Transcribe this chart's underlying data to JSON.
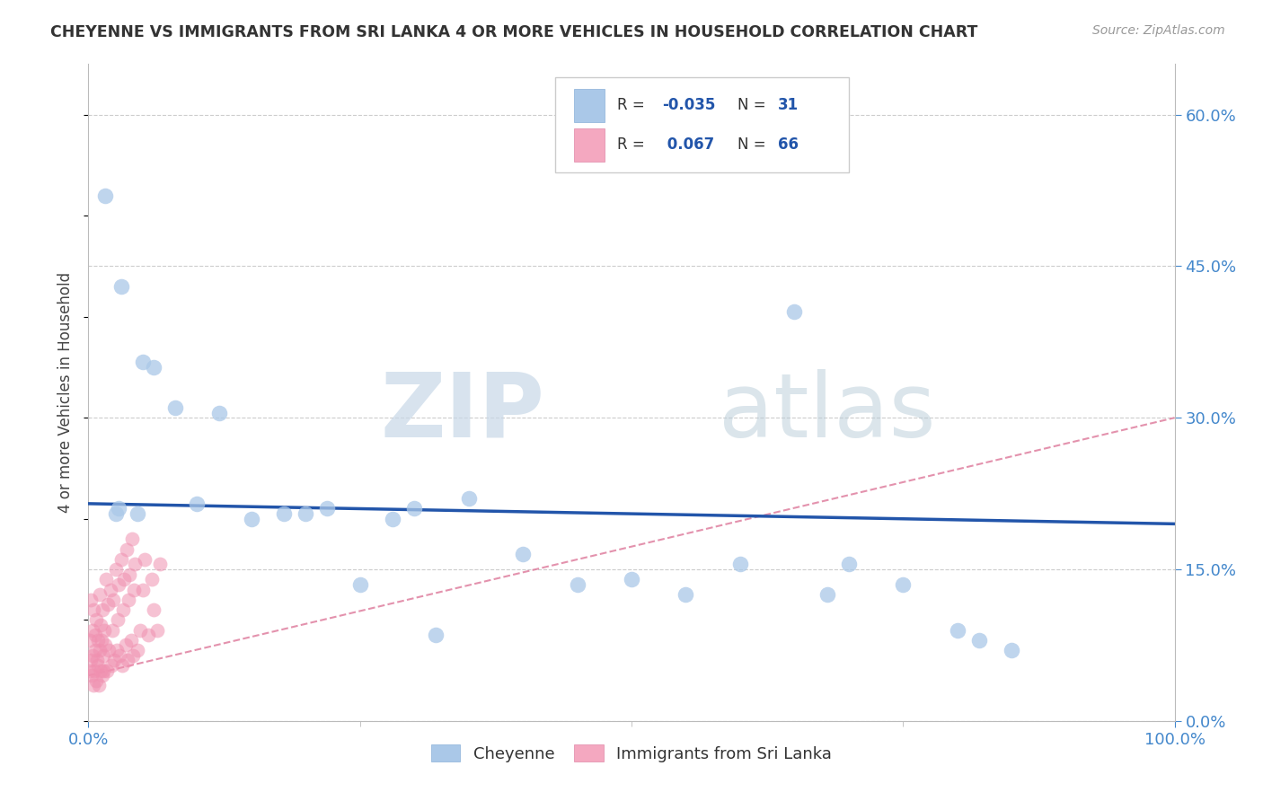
{
  "title": "CHEYENNE VS IMMIGRANTS FROM SRI LANKA 4 OR MORE VEHICLES IN HOUSEHOLD CORRELATION CHART",
  "source": "Source: ZipAtlas.com",
  "ylabel": "4 or more Vehicles in Household",
  "watermark_zip": "ZIP",
  "watermark_atlas": "atlas",
  "cheyenne_r": -0.035,
  "cheyenne_n": 31,
  "sri_lanka_r": 0.067,
  "sri_lanka_n": 66,
  "xlim": [
    0.0,
    100.0
  ],
  "ylim": [
    0.0,
    65.0
  ],
  "xticklabels": [
    "0.0%",
    "100.0%"
  ],
  "xtick_minor_positions": [
    25,
    50,
    75
  ],
  "yticklabels_right_vals": [
    0,
    15,
    30,
    45,
    60
  ],
  "background_color": "#ffffff",
  "grid_color": "#cccccc",
  "cheyenne_dot_color": "#aac8e8",
  "sri_lanka_dot_color": "#f090b0",
  "cheyenne_line_color": "#2255aa",
  "sri_lanka_line_color": "#dd7799",
  "cheyenne_points_x": [
    1.5,
    3.0,
    5.0,
    6.0,
    8.0,
    12.0,
    15.0,
    18.0,
    22.0,
    28.0,
    30.0,
    35.0,
    40.0,
    50.0,
    60.0,
    65.0,
    70.0,
    75.0,
    80.0,
    85.0,
    2.5,
    2.8,
    4.5,
    10.0,
    20.0,
    25.0,
    32.0,
    45.0,
    55.0,
    68.0,
    82.0
  ],
  "cheyenne_points_y": [
    52.0,
    43.0,
    35.5,
    35.0,
    31.0,
    30.5,
    20.0,
    20.5,
    21.0,
    20.0,
    21.0,
    22.0,
    16.5,
    14.0,
    15.5,
    40.5,
    15.5,
    13.5,
    9.0,
    7.0,
    20.5,
    21.0,
    20.5,
    21.5,
    20.5,
    13.5,
    8.5,
    13.5,
    12.5,
    12.5,
    8.0
  ],
  "cheyenne_line_x0": 0.0,
  "cheyenne_line_x1": 100.0,
  "cheyenne_line_y0": 21.5,
  "cheyenne_line_y1": 19.5,
  "sri_lanka_line_x0": 0.0,
  "sri_lanka_line_x1": 100.0,
  "sri_lanka_line_y0": 4.5,
  "sri_lanka_line_y1": 30.0,
  "sri_lanka_points_x": [
    0.1,
    0.15,
    0.2,
    0.25,
    0.3,
    0.35,
    0.4,
    0.45,
    0.5,
    0.55,
    0.6,
    0.65,
    0.7,
    0.75,
    0.8,
    0.85,
    0.9,
    0.95,
    1.0,
    1.05,
    1.1,
    1.15,
    1.2,
    1.25,
    1.3,
    1.35,
    1.4,
    1.45,
    1.5,
    1.6,
    1.7,
    1.8,
    1.9,
    2.0,
    2.1,
    2.2,
    2.3,
    2.4,
    2.5,
    2.6,
    2.7,
    2.8,
    2.9,
    3.0,
    3.1,
    3.2,
    3.3,
    3.4,
    3.5,
    3.6,
    3.7,
    3.8,
    3.9,
    4.0,
    4.1,
    4.2,
    4.3,
    4.5,
    4.8,
    5.0,
    5.2,
    5.5,
    5.8,
    6.0,
    6.3,
    6.6
  ],
  "sri_lanka_points_y": [
    8.0,
    5.0,
    12.0,
    6.0,
    4.5,
    9.0,
    6.5,
    3.5,
    11.0,
    5.0,
    8.5,
    7.0,
    4.0,
    10.0,
    6.0,
    8.0,
    5.5,
    3.5,
    12.5,
    7.0,
    5.0,
    9.5,
    8.0,
    4.5,
    11.0,
    6.5,
    5.0,
    9.0,
    7.5,
    14.0,
    5.0,
    11.5,
    7.0,
    13.0,
    5.5,
    9.0,
    12.0,
    6.0,
    15.0,
    7.0,
    10.0,
    13.5,
    6.5,
    16.0,
    5.5,
    11.0,
    14.0,
    7.5,
    17.0,
    6.0,
    12.0,
    14.5,
    8.0,
    18.0,
    6.5,
    13.0,
    15.5,
    7.0,
    9.0,
    13.0,
    16.0,
    8.5,
    14.0,
    11.0,
    9.0,
    15.5
  ]
}
